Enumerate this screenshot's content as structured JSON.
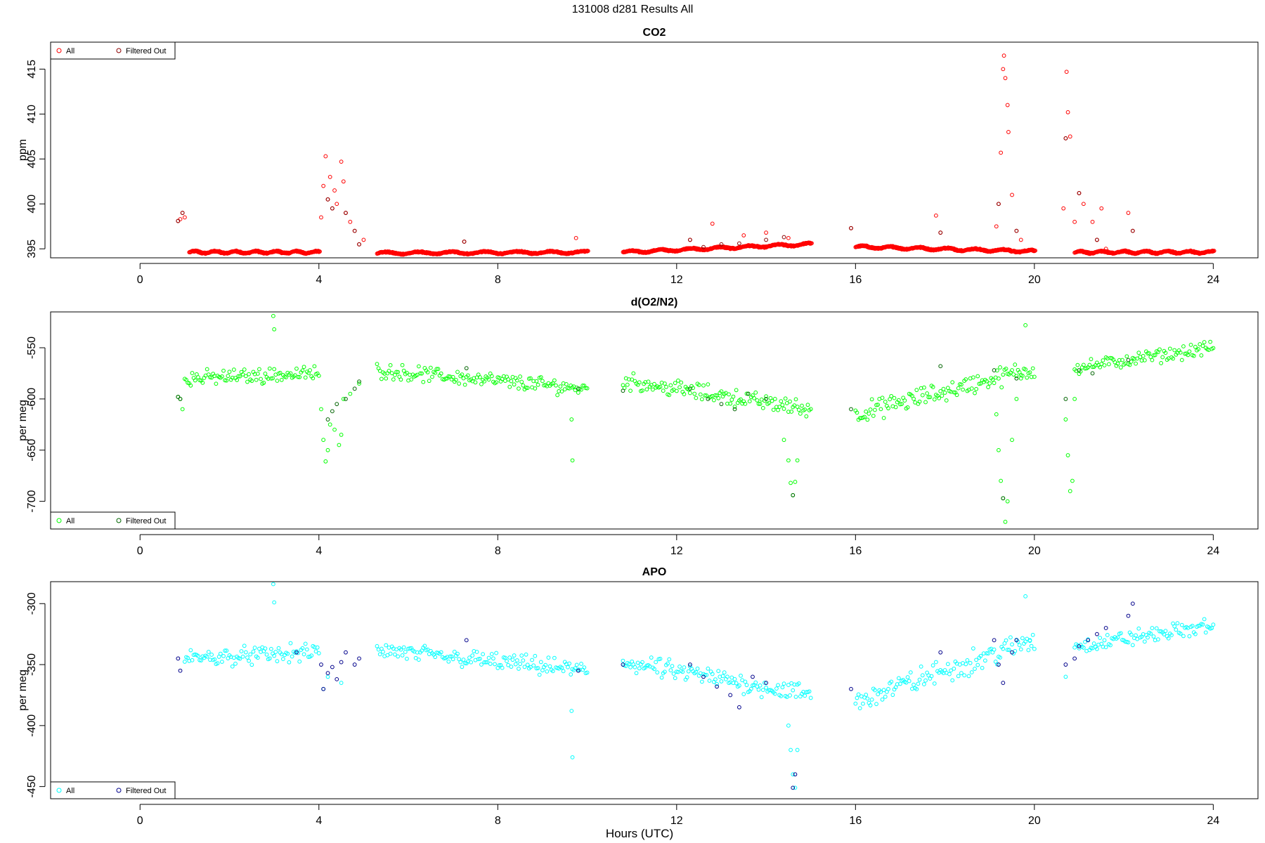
{
  "figure_title": "131008   d281   Results All",
  "xlabel": "Hours (UTC)",
  "chart_data": [
    {
      "type": "scatter",
      "title": "CO2",
      "ylabel": "ppm",
      "xlim": [
        -2,
        25
      ],
      "ylim": [
        394,
        418
      ],
      "xticks": [
        0,
        4,
        8,
        12,
        16,
        20,
        24
      ],
      "yticks": [
        395,
        400,
        405,
        410,
        415
      ],
      "legend": "top-left",
      "series": [
        {
          "name": "All",
          "color": "#ff0000",
          "segments": [
            {
              "x": [
                1.1,
                4.0
              ],
              "y": [
                394.6,
                394.6
              ]
            },
            {
              "x": [
                5.3,
                10.0
              ],
              "y": [
                394.5,
                394.6
              ]
            },
            {
              "x": [
                10.8,
                15.0
              ],
              "y": [
                394.6,
                395.5
              ]
            },
            {
              "x": [
                16.0,
                20.0
              ],
              "y": [
                395.2,
                394.7
              ]
            },
            {
              "x": [
                20.9,
                24.0
              ],
              "y": [
                394.6,
                394.6
              ]
            }
          ],
          "points": [
            [
              0.85,
              398.1
            ],
            [
              0.9,
              398.3
            ],
            [
              0.95,
              399.0
            ],
            [
              1.0,
              398.5
            ],
            [
              4.05,
              398.5
            ],
            [
              4.1,
              402.0
            ],
            [
              4.15,
              405.3
            ],
            [
              4.2,
              400.5
            ],
            [
              4.25,
              403.0
            ],
            [
              4.3,
              399.5
            ],
            [
              4.35,
              401.5
            ],
            [
              4.4,
              400.0
            ],
            [
              4.5,
              404.7
            ],
            [
              4.55,
              402.5
            ],
            [
              4.6,
              399.0
            ],
            [
              4.7,
              398.0
            ],
            [
              4.8,
              397.0
            ],
            [
              4.9,
              395.5
            ],
            [
              5.0,
              396.0
            ],
            [
              7.25,
              395.8
            ],
            [
              9.75,
              396.2
            ],
            [
              12.3,
              396.0
            ],
            [
              12.8,
              397.8
            ],
            [
              13.5,
              396.5
            ],
            [
              14.0,
              396.8
            ],
            [
              14.5,
              396.2
            ],
            [
              15.9,
              397.3
            ],
            [
              17.8,
              398.7
            ],
            [
              17.9,
              396.8
            ],
            [
              19.15,
              397.5
            ],
            [
              19.2,
              400.0
            ],
            [
              19.25,
              405.7
            ],
            [
              19.3,
              415.0
            ],
            [
              19.32,
              416.5
            ],
            [
              19.35,
              414.0
            ],
            [
              19.4,
              411.0
            ],
            [
              19.42,
              408.0
            ],
            [
              19.5,
              401.0
            ],
            [
              19.6,
              397.0
            ],
            [
              19.7,
              396.0
            ],
            [
              20.65,
              399.5
            ],
            [
              20.7,
              407.3
            ],
            [
              20.72,
              414.7
            ],
            [
              20.75,
              410.2
            ],
            [
              20.8,
              407.5
            ],
            [
              20.9,
              398.0
            ],
            [
              21.0,
              401.2
            ],
            [
              21.1,
              400.0
            ],
            [
              21.3,
              398.0
            ],
            [
              21.4,
              396.0
            ],
            [
              21.5,
              399.5
            ],
            [
              21.6,
              395.0
            ],
            [
              22.1,
              399.0
            ],
            [
              22.2,
              397.0
            ]
          ]
        },
        {
          "name": "Filtered Out",
          "color": "#8b0000",
          "points": [
            [
              0.85,
              398.1
            ],
            [
              0.95,
              399.0
            ],
            [
              4.2,
              400.5
            ],
            [
              4.3,
              399.5
            ],
            [
              4.6,
              399.0
            ],
            [
              4.8,
              397.0
            ],
            [
              4.9,
              395.5
            ],
            [
              7.25,
              395.8
            ],
            [
              12.3,
              396.0
            ],
            [
              12.6,
              395.2
            ],
            [
              13.0,
              395.5
            ],
            [
              13.4,
              395.6
            ],
            [
              14.0,
              396.0
            ],
            [
              14.4,
              396.3
            ],
            [
              15.9,
              397.3
            ],
            [
              17.9,
              396.8
            ],
            [
              19.2,
              400.0
            ],
            [
              19.6,
              397.0
            ],
            [
              20.7,
              407.3
            ],
            [
              21.0,
              401.2
            ],
            [
              21.4,
              396.0
            ],
            [
              22.2,
              397.0
            ]
          ]
        }
      ]
    },
    {
      "type": "scatter",
      "title": "d(O2/N2)",
      "ylabel": "per meg",
      "xlim": [
        -2,
        25
      ],
      "ylim": [
        -727,
        -515
      ],
      "xticks": [
        0,
        4,
        8,
        12,
        16,
        20,
        24
      ],
      "yticks": [
        -550,
        -600,
        -650,
        -700
      ],
      "legend": "bottom-left",
      "series": [
        {
          "name": "All",
          "color": "#00ff00",
          "segments": [
            {
              "x": [
                1.0,
                4.0
              ],
              "y": [
                -580,
                -575
              ],
              "spread": 9
            },
            {
              "x": [
                5.3,
                10.0
              ],
              "y": [
                -572,
                -590
              ],
              "spread": 9
            },
            {
              "x": [
                10.8,
                15.0
              ],
              "y": [
                -582,
                -610
              ],
              "spread": 10
            },
            {
              "x": [
                16.0,
                20.0
              ],
              "y": [
                -615,
                -570
              ],
              "spread": 12
            },
            {
              "x": [
                20.9,
                24.0
              ],
              "y": [
                -570,
                -550
              ],
              "spread": 8
            }
          ],
          "points": [
            [
              0.85,
              -598
            ],
            [
              0.9,
              -600
            ],
            [
              0.95,
              -610
            ],
            [
              2.98,
              -519
            ],
            [
              3.0,
              -532
            ],
            [
              4.05,
              -610
            ],
            [
              4.1,
              -640
            ],
            [
              4.15,
              -661
            ],
            [
              4.2,
              -650
            ],
            [
              4.25,
              -625
            ],
            [
              4.35,
              -630
            ],
            [
              4.45,
              -645
            ],
            [
              4.5,
              -635
            ],
            [
              4.55,
              -600
            ],
            [
              4.7,
              -595
            ],
            [
              4.9,
              -585
            ],
            [
              9.65,
              -620
            ],
            [
              9.67,
              -660
            ],
            [
              14.4,
              -640
            ],
            [
              14.5,
              -660
            ],
            [
              14.55,
              -682
            ],
            [
              14.6,
              -694
            ],
            [
              14.65,
              -681
            ],
            [
              14.7,
              -660
            ],
            [
              19.15,
              -615
            ],
            [
              19.2,
              -650
            ],
            [
              19.25,
              -680
            ],
            [
              19.3,
              -697
            ],
            [
              19.35,
              -720
            ],
            [
              19.4,
              -700
            ],
            [
              19.5,
              -640
            ],
            [
              19.6,
              -600
            ],
            [
              19.7,
              -580
            ],
            [
              19.8,
              -528
            ],
            [
              20.7,
              -620
            ],
            [
              20.75,
              -655
            ],
            [
              20.8,
              -690
            ],
            [
              20.85,
              -680
            ],
            [
              20.9,
              -600
            ]
          ]
        },
        {
          "name": "Filtered Out",
          "color": "#006400",
          "points": [
            [
              0.85,
              -598
            ],
            [
              0.9,
              -600
            ],
            [
              4.2,
              -620
            ],
            [
              4.3,
              -612
            ],
            [
              4.4,
              -605
            ],
            [
              4.6,
              -600
            ],
            [
              4.8,
              -590
            ],
            [
              4.9,
              -583
            ],
            [
              7.3,
              -570
            ],
            [
              9.8,
              -590
            ],
            [
              10.8,
              -592
            ],
            [
              12.3,
              -590
            ],
            [
              12.7,
              -600
            ],
            [
              13.0,
              -605
            ],
            [
              13.3,
              -610
            ],
            [
              13.6,
              -595
            ],
            [
              14.0,
              -600
            ],
            [
              14.6,
              -694
            ],
            [
              15.9,
              -610
            ],
            [
              17.9,
              -568
            ],
            [
              19.1,
              -572
            ],
            [
              19.3,
              -697
            ],
            [
              19.6,
              -580
            ],
            [
              20.7,
              -600
            ],
            [
              21.0,
              -572
            ],
            [
              21.3,
              -575
            ],
            [
              22.1,
              -562
            ]
          ]
        }
      ]
    },
    {
      "type": "scatter",
      "title": "APO",
      "ylabel": "per meg",
      "xlim": [
        -2,
        25
      ],
      "ylim": [
        -460,
        -282
      ],
      "xticks": [
        0,
        4,
        8,
        12,
        16,
        20,
        24
      ],
      "yticks": [
        -300,
        -350,
        -400,
        -450
      ],
      "legend": "bottom-left",
      "series": [
        {
          "name": "All",
          "color": "#00ffff",
          "segments": [
            {
              "x": [
                1.0,
                4.0
              ],
              "y": [
                -345,
                -340
              ],
              "spread": 9
            },
            {
              "x": [
                5.3,
                10.0
              ],
              "y": [
                -338,
                -355
              ],
              "spread": 9
            },
            {
              "x": [
                10.8,
                15.0
              ],
              "y": [
                -348,
                -375
              ],
              "spread": 10
            },
            {
              "x": [
                16.0,
                20.0
              ],
              "y": [
                -380,
                -330
              ],
              "spread": 12
            },
            {
              "x": [
                20.9,
                24.0
              ],
              "y": [
                -335,
                -318
              ],
              "spread": 8
            }
          ],
          "points": [
            [
              2.98,
              -284
            ],
            [
              3.0,
              -299
            ],
            [
              4.1,
              -370
            ],
            [
              4.2,
              -360
            ],
            [
              4.5,
              -365
            ],
            [
              9.65,
              -388
            ],
            [
              9.67,
              -426
            ],
            [
              14.5,
              -400
            ],
            [
              14.55,
              -420
            ],
            [
              14.6,
              -440
            ],
            [
              14.65,
              -451
            ],
            [
              14.7,
              -420
            ],
            [
              19.8,
              -294
            ],
            [
              19.9,
              -330
            ],
            [
              20.7,
              -360
            ]
          ]
        },
        {
          "name": "Filtered Out",
          "color": "#00008b",
          "points": [
            [
              0.85,
              -345
            ],
            [
              0.9,
              -355
            ],
            [
              3.5,
              -340
            ],
            [
              4.05,
              -350
            ],
            [
              4.1,
              -370
            ],
            [
              4.2,
              -357
            ],
            [
              4.3,
              -352
            ],
            [
              4.4,
              -362
            ],
            [
              4.5,
              -348
            ],
            [
              4.6,
              -340
            ],
            [
              4.8,
              -350
            ],
            [
              4.9,
              -345
            ],
            [
              7.3,
              -330
            ],
            [
              9.8,
              -355
            ],
            [
              10.8,
              -350
            ],
            [
              12.3,
              -350
            ],
            [
              12.6,
              -360
            ],
            [
              12.9,
              -368
            ],
            [
              13.2,
              -375
            ],
            [
              13.4,
              -385
            ],
            [
              13.7,
              -360
            ],
            [
              14.0,
              -365
            ],
            [
              14.6,
              -451
            ],
            [
              14.65,
              -440
            ],
            [
              15.9,
              -370
            ],
            [
              17.9,
              -340
            ],
            [
              19.1,
              -330
            ],
            [
              19.2,
              -350
            ],
            [
              19.3,
              -365
            ],
            [
              19.5,
              -340
            ],
            [
              19.6,
              -330
            ],
            [
              20.7,
              -350
            ],
            [
              20.9,
              -345
            ],
            [
              21.0,
              -335
            ],
            [
              21.2,
              -330
            ],
            [
              21.4,
              -325
            ],
            [
              21.6,
              -320
            ],
            [
              22.1,
              -310
            ],
            [
              22.2,
              -300
            ]
          ]
        }
      ]
    }
  ]
}
